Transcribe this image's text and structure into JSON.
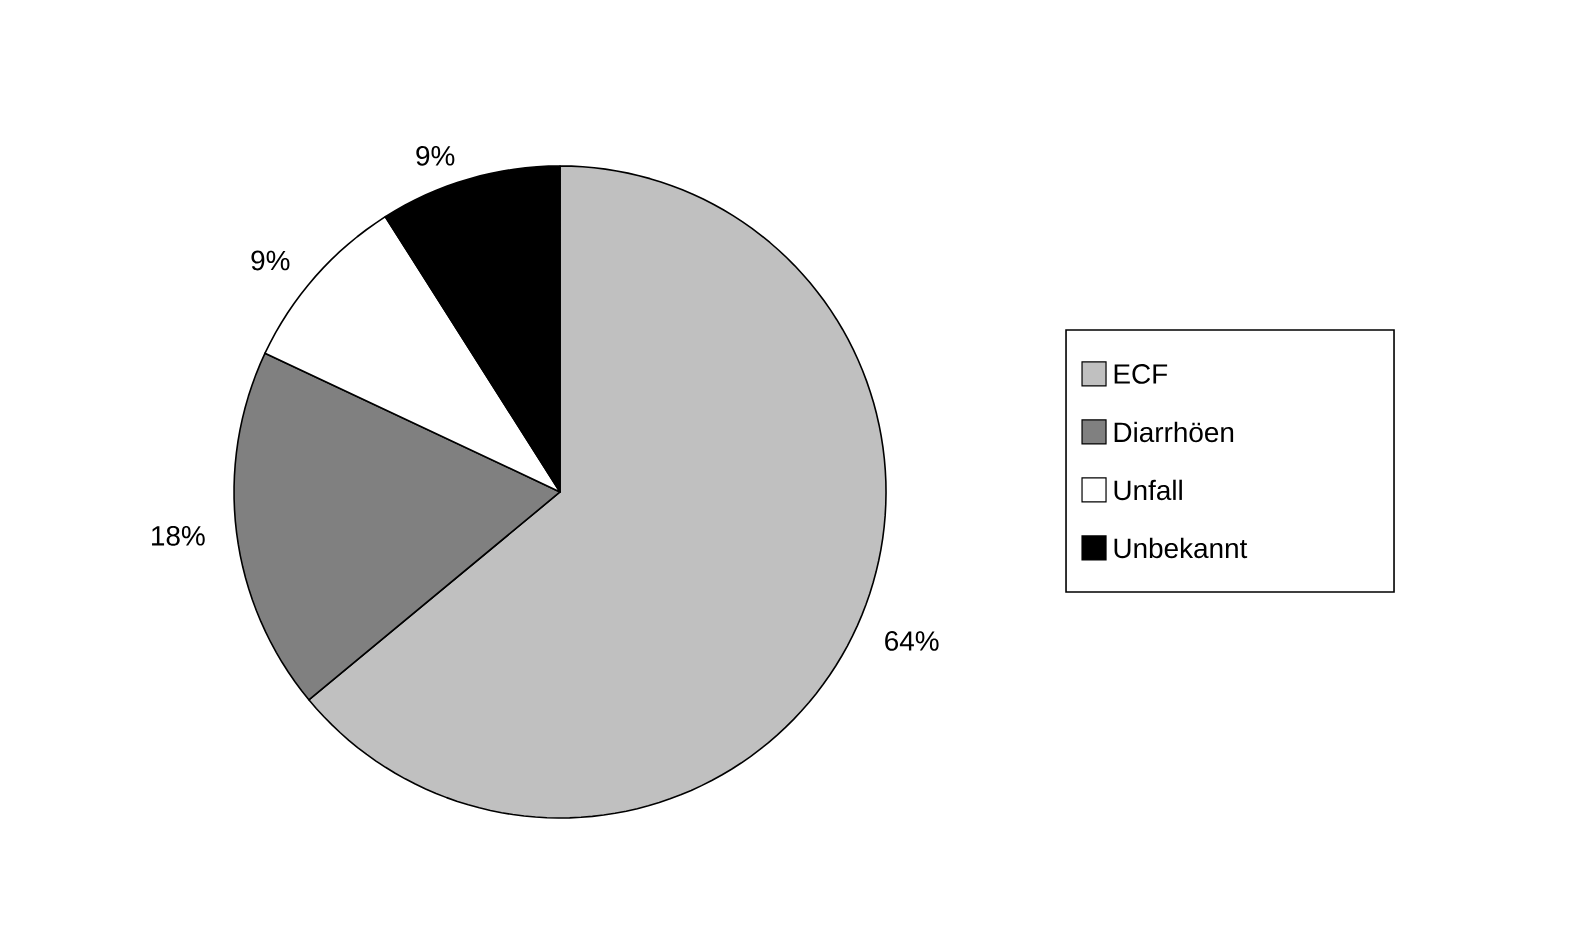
{
  "chart_data": {
    "type": "pie",
    "categories": [
      "ECF",
      "Diarrhöen",
      "Unfall",
      "Unbekannt"
    ],
    "values": [
      64,
      18,
      9,
      9
    ],
    "colors": [
      "#c0c0c0",
      "#808080",
      "#ffffff",
      "#000000"
    ],
    "value_labels": [
      "64%",
      "18%",
      "9%",
      "9%"
    ],
    "legend": "right"
  }
}
